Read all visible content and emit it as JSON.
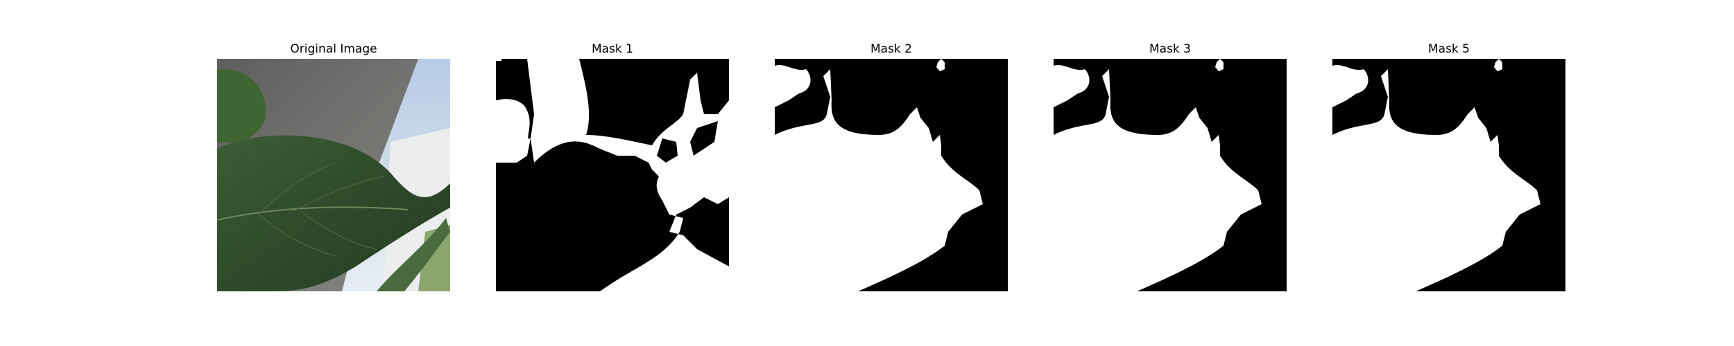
{
  "panels": [
    {
      "title": "Original Image"
    },
    {
      "title": "Mask 1"
    },
    {
      "title": "Mask 2"
    },
    {
      "title": "Mask 3"
    },
    {
      "title": "Mask 5"
    }
  ],
  "colors": {
    "background": "#ffffff",
    "mask_foreground": "#ffffff",
    "mask_background": "#000000",
    "leaf_dark": "#2f4a2a",
    "leaf_mid": "#4a6b3d",
    "sky": "#c9d8ec",
    "wall": "#7a7a78"
  }
}
